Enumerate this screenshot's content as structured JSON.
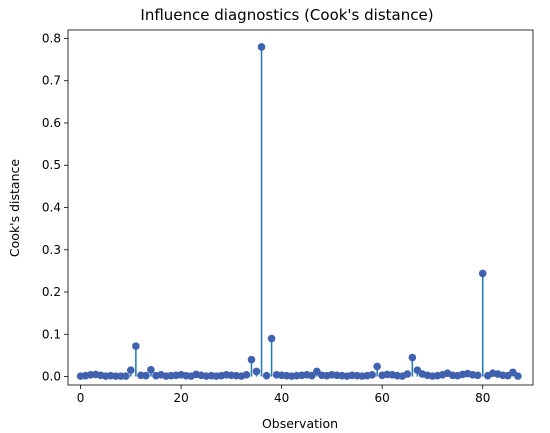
{
  "chart_data": {
    "type": "scatter",
    "style": "stem",
    "title": "Influence diagnostics (Cook's distance)",
    "xlabel": "Observation",
    "ylabel": "Cook's distance",
    "xlim": [
      -2.5,
      90
    ],
    "ylim": [
      -0.02,
      0.82
    ],
    "xticks": [
      0,
      20,
      40,
      60,
      80
    ],
    "yticks": [
      0.0,
      0.1,
      0.2,
      0.3,
      0.4,
      0.5,
      0.6,
      0.7,
      0.8
    ],
    "grid": false,
    "legend": "none",
    "series": [
      {
        "marker_color": "#4060b0",
        "stem_color": "#1f77b4",
        "x": [
          0,
          1,
          2,
          3,
          4,
          5,
          6,
          7,
          8,
          9,
          10,
          11,
          12,
          13,
          14,
          15,
          16,
          17,
          18,
          19,
          20,
          21,
          22,
          23,
          24,
          25,
          26,
          27,
          28,
          29,
          30,
          31,
          32,
          33,
          34,
          35,
          36,
          37,
          38,
          39,
          40,
          41,
          42,
          43,
          44,
          45,
          46,
          47,
          48,
          49,
          50,
          51,
          52,
          53,
          54,
          55,
          56,
          57,
          58,
          59,
          60,
          61,
          62,
          63,
          64,
          65,
          66,
          67,
          68,
          69,
          70,
          71,
          72,
          73,
          74,
          75,
          76,
          77,
          78,
          79,
          80,
          81,
          82,
          83,
          84,
          85,
          86,
          87
        ],
        "values": [
          0.001,
          0.002,
          0.004,
          0.005,
          0.003,
          0.001,
          0.002,
          0.001,
          0.001,
          0.001,
          0.015,
          0.072,
          0.003,
          0.002,
          0.016,
          0.002,
          0.004,
          0.001,
          0.002,
          0.003,
          0.004,
          0.002,
          0.001,
          0.005,
          0.003,
          0.001,
          0.002,
          0.001,
          0.002,
          0.004,
          0.003,
          0.002,
          0.001,
          0.004,
          0.04,
          0.012,
          0.78,
          0.002,
          0.09,
          0.004,
          0.003,
          0.002,
          0.001,
          0.002,
          0.003,
          0.004,
          0.002,
          0.012,
          0.003,
          0.002,
          0.004,
          0.003,
          0.002,
          0.001,
          0.003,
          0.002,
          0.001,
          0.002,
          0.004,
          0.024,
          0.003,
          0.005,
          0.004,
          0.002,
          0.001,
          0.006,
          0.045,
          0.015,
          0.006,
          0.003,
          0.001,
          0.002,
          0.004,
          0.008,
          0.003,
          0.002,
          0.005,
          0.007,
          0.004,
          0.003,
          0.244,
          0.002,
          0.008,
          0.006,
          0.003,
          0.002,
          0.01,
          0.001
        ]
      }
    ]
  }
}
